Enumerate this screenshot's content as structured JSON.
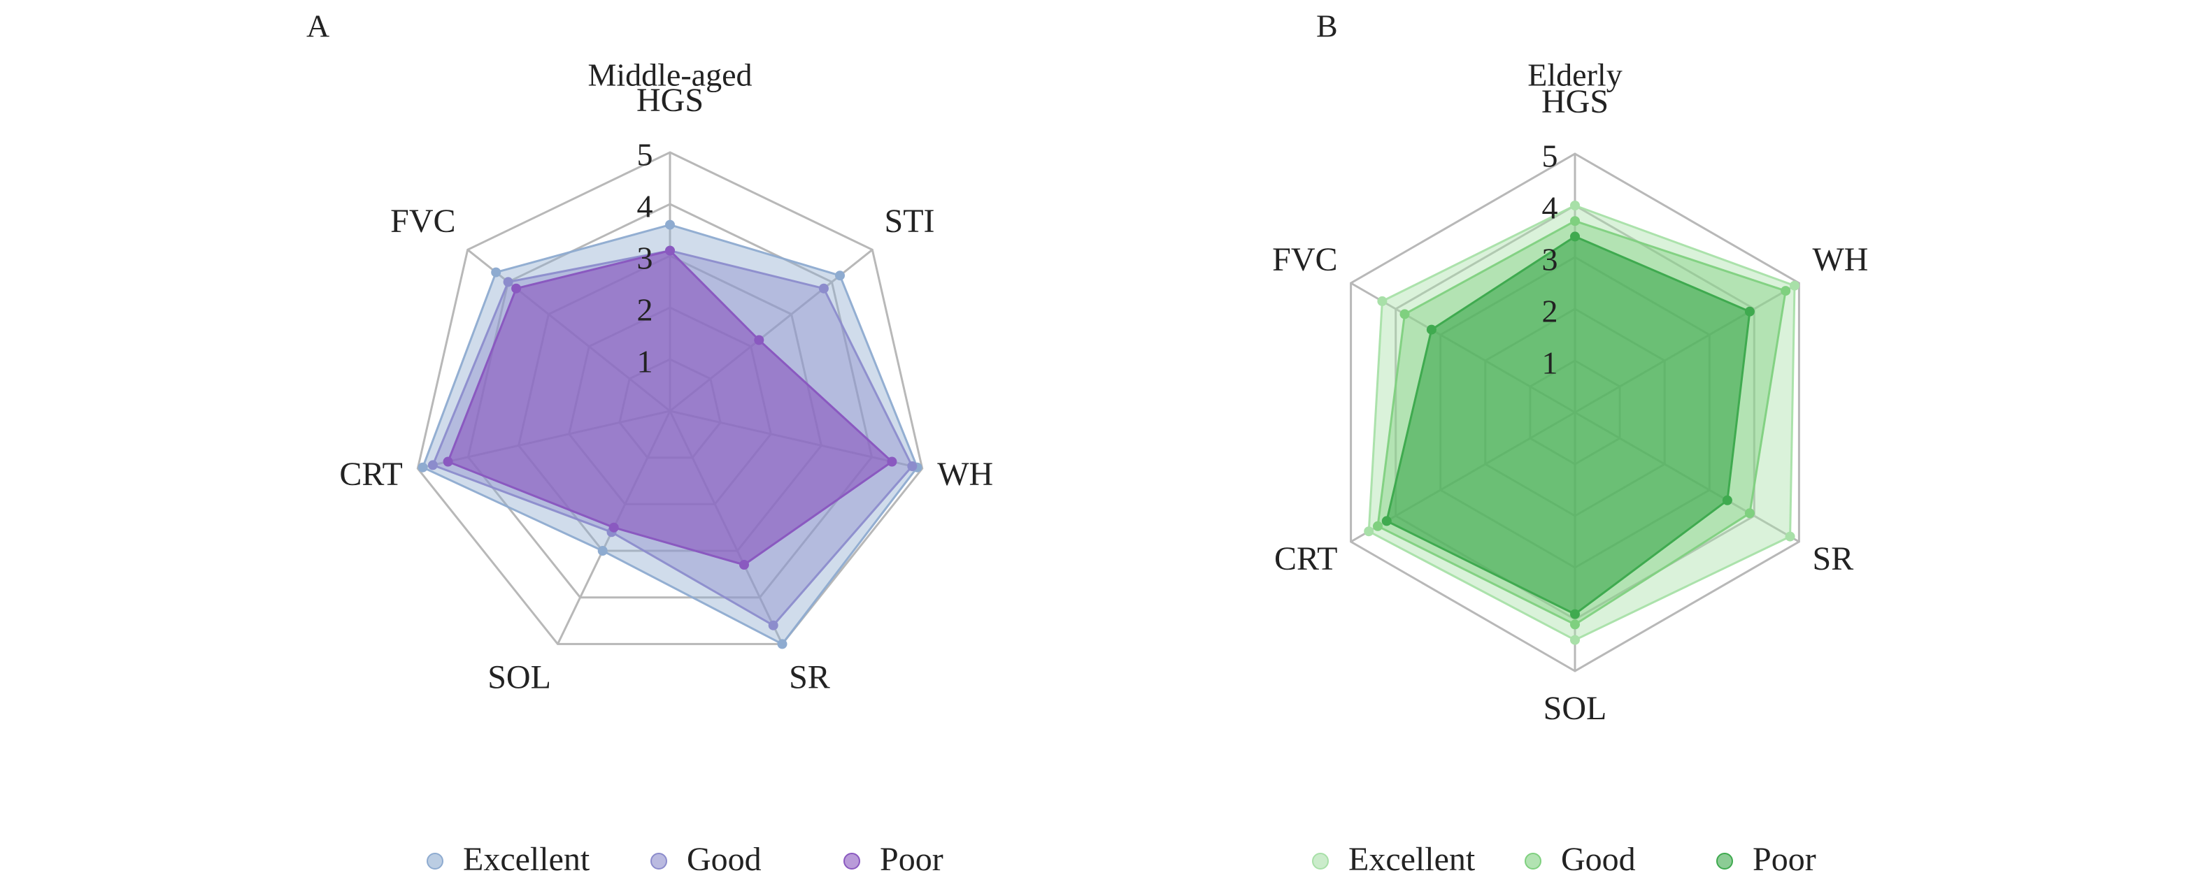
{
  "chart_data": [
    {
      "type": "radar",
      "panel": "A",
      "title": "Middle-aged",
      "axes": [
        "HGS",
        "STI",
        "WH",
        "SR",
        "SOL",
        "CRT",
        "FVC"
      ],
      "ticks": [
        "1",
        "2",
        "3",
        "4",
        "5"
      ],
      "rlim": [
        0,
        5
      ],
      "grid": true,
      "legend_position": "bottom",
      "series": [
        {
          "name": "Excellent",
          "values": [
            3.6,
            4.2,
            4.9,
            5.0,
            3.0,
            4.9,
            4.3
          ],
          "color": "#8eabd0"
        },
        {
          "name": "Good",
          "values": [
            3.1,
            3.8,
            4.8,
            4.6,
            2.6,
            4.7,
            4.0
          ],
          "color": "#8c8ccc"
        },
        {
          "name": "Poor",
          "values": [
            3.1,
            2.2,
            4.4,
            3.3,
            2.5,
            4.4,
            3.8
          ],
          "color": "#8a59c0"
        }
      ]
    },
    {
      "type": "radar",
      "panel": "B",
      "title": "Elderly",
      "axes": [
        "HGS",
        "WH",
        "SR",
        "SOL",
        "CRT",
        "FVC"
      ],
      "ticks": [
        "1",
        "2",
        "3",
        "4",
        "5"
      ],
      "rlim": [
        0,
        5
      ],
      "grid": true,
      "legend_position": "bottom",
      "series": [
        {
          "name": "Excellent",
          "values": [
            4.0,
            4.9,
            4.8,
            4.4,
            4.6,
            4.3
          ],
          "color": "#a8e0a8"
        },
        {
          "name": "Good",
          "values": [
            3.7,
            4.7,
            3.9,
            4.1,
            4.4,
            3.8
          ],
          "color": "#7fd07f"
        },
        {
          "name": "Poor",
          "values": [
            3.4,
            3.9,
            3.4,
            3.9,
            4.2,
            3.2
          ],
          "color": "#3faa4f"
        }
      ]
    }
  ]
}
